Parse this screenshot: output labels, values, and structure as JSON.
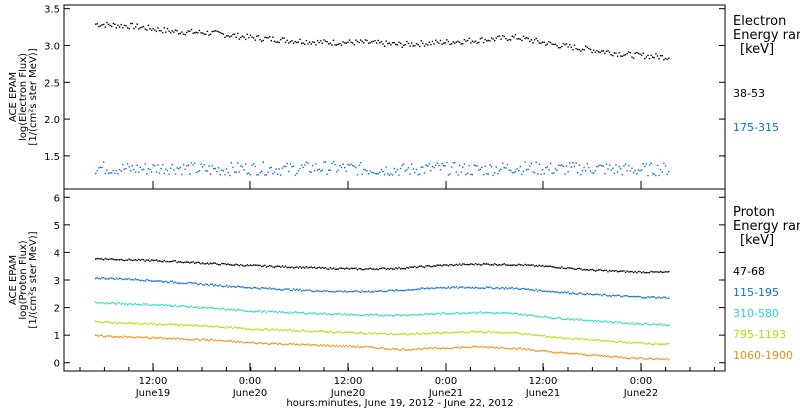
{
  "chart_data": [
    {
      "type": "scatter",
      "panel": "electron",
      "ylabel_lines": [
        "ACE EPAM",
        "log(Electron Flux)",
        "[1/(cm²s ster MeV)]"
      ],
      "ylim": [
        1.05,
        3.55
      ],
      "yticks": [
        "1.5",
        "2.0",
        "2.5",
        "3.0",
        "3.5"
      ],
      "legend_title": [
        "Electron",
        "Energy range",
        "[keV]"
      ],
      "series": [
        {
          "name": "38-53",
          "color": "#000000",
          "values": [
            3.3,
            3.27,
            3.2,
            3.18,
            3.12,
            3.08,
            3.05,
            3.05,
            3.02,
            3.05,
            3.08,
            3.12,
            3.02,
            2.95,
            2.88,
            2.85
          ]
        },
        {
          "name": "175-315",
          "color": "#0a6fd6",
          "values": [
            1.35,
            1.33,
            1.35,
            1.32,
            1.34,
            1.33,
            1.35,
            1.33,
            1.32,
            1.34,
            1.32,
            1.35,
            1.33,
            1.34,
            1.32,
            1.33
          ]
        }
      ]
    },
    {
      "type": "scatter",
      "panel": "proton",
      "ylabel_lines": [
        "ACE EPAM",
        "log(Proton Flux)",
        "[1/(cm²s ster MeV)]"
      ],
      "ylim": [
        -0.3,
        6.3
      ],
      "yticks": [
        "0",
        "1",
        "2",
        "3",
        "4",
        "5",
        "6"
      ],
      "legend_title": [
        "Proton",
        "Energy range",
        "[keV]"
      ],
      "series": [
        {
          "name": "47-68",
          "color": "#000000",
          "values": [
            3.8,
            3.75,
            3.7,
            3.62,
            3.55,
            3.5,
            3.45,
            3.42,
            3.45,
            3.55,
            3.6,
            3.58,
            3.5,
            3.38,
            3.32,
            3.3
          ]
        },
        {
          "name": "115-195",
          "color": "#0a6fd6",
          "values": [
            3.1,
            3.05,
            2.95,
            2.85,
            2.75,
            2.68,
            2.62,
            2.6,
            2.65,
            2.75,
            2.75,
            2.72,
            2.6,
            2.5,
            2.42,
            2.38
          ]
        },
        {
          "name": "310-580",
          "color": "#22d8c8",
          "values": [
            2.2,
            2.15,
            2.1,
            2.0,
            1.9,
            1.85,
            1.8,
            1.75,
            1.75,
            1.8,
            1.85,
            1.8,
            1.65,
            1.55,
            1.45,
            1.4
          ]
        },
        {
          "name": "795-1193",
          "color": "#bcd800",
          "values": [
            1.5,
            1.45,
            1.4,
            1.35,
            1.25,
            1.2,
            1.15,
            1.1,
            1.05,
            1.1,
            1.15,
            1.1,
            0.95,
            0.85,
            0.75,
            0.7
          ]
        },
        {
          "name": "1060-1900",
          "color": "#f08a10",
          "values": [
            1.0,
            0.95,
            0.9,
            0.85,
            0.75,
            0.7,
            0.65,
            0.6,
            0.5,
            0.55,
            0.6,
            0.55,
            0.4,
            0.3,
            0.2,
            0.15
          ]
        }
      ]
    }
  ],
  "x_axis": {
    "ticks": [
      {
        "time": "12:00",
        "date": "June19"
      },
      {
        "time": "0:00",
        "date": "June20"
      },
      {
        "time": "12:00",
        "date": "June20"
      },
      {
        "time": "0:00",
        "date": "June21"
      },
      {
        "time": "12:00",
        "date": "June21"
      },
      {
        "time": "0:00",
        "date": "June22"
      }
    ],
    "label": "hours:minutes, June 19, 2012 - June 22, 2012"
  }
}
